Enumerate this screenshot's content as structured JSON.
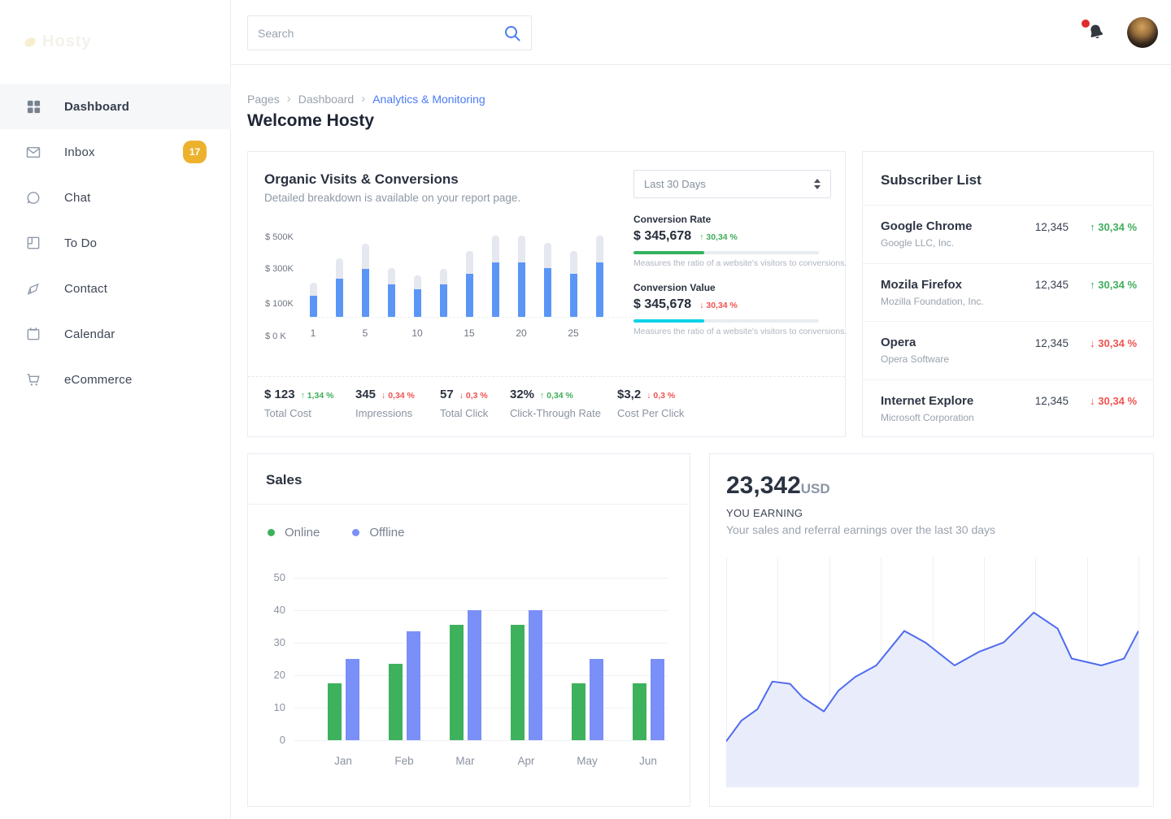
{
  "topbar": {
    "search_placeholder": "Search"
  },
  "sidebar": {
    "logo_text": "Hosty",
    "items": [
      {
        "label": "Dashboard",
        "active": true
      },
      {
        "label": "Inbox",
        "badge": "17"
      },
      {
        "label": "Chat"
      },
      {
        "label": "To Do"
      },
      {
        "label": "Contact"
      },
      {
        "label": "Calendar"
      },
      {
        "label": "eCommerce"
      }
    ]
  },
  "breadcrumb": {
    "items": [
      "Pages",
      "Dashboard",
      "Analytics & Monitoring"
    ]
  },
  "page_title": "Welcome Hosty",
  "organic": {
    "title": "Organic Visits & Conversions",
    "subtitle": "Detailed breakdown is available on your report page.",
    "period": "Last 30 Days",
    "metrics": [
      {
        "label": "Conversion Rate",
        "value": "$ 345,678",
        "delta": "30,34 %",
        "direction": "up",
        "bar_color": "#34b35f",
        "bar_percent": 38,
        "caption": "Measures the ratio of a website's visitors to conversions."
      },
      {
        "label": "Conversion Value",
        "value": "$ 345,678",
        "delta": "30,34 %",
        "direction": "down",
        "bar_color": "#07d2e6",
        "bar_percent": 38,
        "caption": "Measures the ratio of a website's visitors to conversions."
      }
    ],
    "stats": [
      {
        "value": "$ 123",
        "delta": "1,34 %",
        "direction": "up",
        "label": "Total Cost"
      },
      {
        "value": "345",
        "delta": "0,34 %",
        "direction": "down",
        "label": "Impressions"
      },
      {
        "value": "57",
        "delta": "0,3 %",
        "direction": "down",
        "label": "Total Click"
      },
      {
        "value": "32%",
        "delta": "0,34 %",
        "direction": "up",
        "label": "Click-Through Rate"
      },
      {
        "value": "$3,2",
        "delta": "0,3 %",
        "direction": "down",
        "label": "Cost Per Click"
      }
    ]
  },
  "subscribers": {
    "title": "Subscriber List",
    "rows": [
      {
        "name": "Google Chrome",
        "company": "Google LLC, Inc.",
        "value": "12,345",
        "delta": "30,34 %",
        "direction": "up"
      },
      {
        "name": "Mozila Firefox",
        "company": "Mozilla Foundation, Inc.",
        "value": "12,345",
        "delta": "30,34 %",
        "direction": "up"
      },
      {
        "name": "Opera",
        "company": "Opera Software",
        "value": "12,345",
        "delta": "30,34 %",
        "direction": "down"
      },
      {
        "name": "Internet Explore",
        "company": "Microsoft Corporation",
        "value": "12,345",
        "delta": "30,34 %",
        "direction": "down"
      }
    ]
  },
  "sales": {
    "title": "Sales",
    "legend": [
      {
        "label": "Online",
        "color": "#3eb15d"
      },
      {
        "label": "Offline",
        "color": "#7b8ff8"
      }
    ]
  },
  "earning": {
    "amount": "23,342",
    "currency": "USD",
    "label": "YOU EARNING",
    "subtitle": "Your sales and referral earnings over the last 30 days"
  },
  "chart_data": [
    {
      "id": "organic-visits",
      "type": "bar",
      "stacked": true,
      "unit": "USD thousands",
      "x_tick_labels": [
        "1",
        "5",
        "10",
        "15",
        "20",
        "25"
      ],
      "y_tick_labels": [
        "$ 500K",
        "$ 300K",
        "$ 100K",
        "$ 0 K"
      ],
      "ylim": [
        0,
        500
      ],
      "series": [
        {
          "name": "organic-visits",
          "color": "#5b96f7",
          "values": [
            135,
            240,
            300,
            205,
            175,
            205,
            270,
            340,
            340,
            305,
            270,
            340
          ]
        },
        {
          "name": "remainder",
          "color": "#e5e8ee",
          "values": [
            80,
            125,
            160,
            100,
            85,
            95,
            145,
            170,
            170,
            160,
            145,
            170
          ]
        }
      ]
    },
    {
      "id": "sales",
      "type": "bar",
      "grouped": true,
      "categories": [
        "Jan",
        "Feb",
        "Mar",
        "Apr",
        "May",
        "Jun"
      ],
      "yticks": [
        0,
        10,
        20,
        30,
        40,
        50
      ],
      "ylim": [
        0,
        50
      ],
      "series": [
        {
          "name": "Online",
          "color": "#3eb15d",
          "values": [
            17.5,
            23.5,
            35.5,
            35.5,
            17.5,
            17.5
          ]
        },
        {
          "name": "Offline",
          "color": "#7b8ff8",
          "values": [
            25,
            33.5,
            40,
            40,
            25,
            25
          ]
        }
      ]
    },
    {
      "id": "earnings",
      "type": "area",
      "line_color": "#4f6bef",
      "fill_color": "#e9edfb",
      "vertical_gridlines": 9,
      "points_note": "x = percent of chart width, y = percent of chart height above baseline",
      "points": [
        [
          0,
          20
        ],
        [
          3.7,
          29
        ],
        [
          7.6,
          34
        ],
        [
          11.2,
          46
        ],
        [
          15.5,
          45
        ],
        [
          18.6,
          39
        ],
        [
          23.7,
          33
        ],
        [
          27.2,
          42
        ],
        [
          31.3,
          48
        ],
        [
          36.4,
          53
        ],
        [
          43.2,
          68
        ],
        [
          48.3,
          63
        ],
        [
          55.4,
          53
        ],
        [
          61.4,
          59
        ],
        [
          67.3,
          63
        ],
        [
          74.6,
          76
        ],
        [
          80.4,
          69
        ],
        [
          83.8,
          56
        ],
        [
          91,
          53
        ],
        [
          96.5,
          56
        ],
        [
          100,
          68
        ]
      ]
    }
  ]
}
